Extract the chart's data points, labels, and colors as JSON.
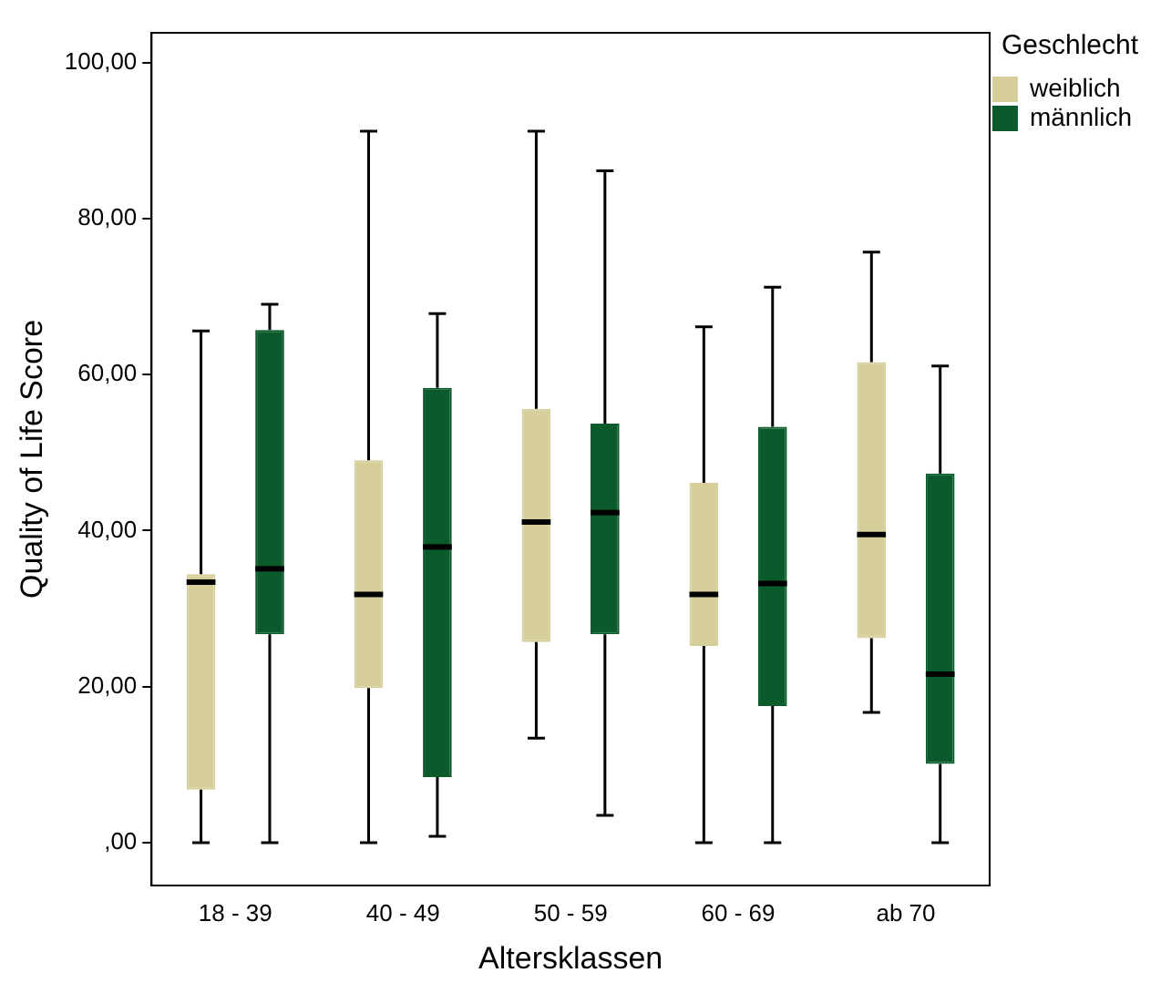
{
  "chart_data": {
    "type": "box",
    "xlabel": "Altersklassen",
    "ylabel": "Quality of Life Score",
    "legend_title": "Geschlecht",
    "legend": "right",
    "grid": false,
    "categories": [
      "18 - 39",
      "40 - 49",
      "50 - 59",
      "60 - 69",
      "ab 70"
    ],
    "ylim": [
      -5.5,
      103.8
    ],
    "yticks": [
      {
        "value": 0,
        "label": ",00"
      },
      {
        "value": 20,
        "label": "20,00"
      },
      {
        "value": 40,
        "label": "40,00"
      },
      {
        "value": 60,
        "label": "60,00"
      },
      {
        "value": 80,
        "label": "80,00"
      },
      {
        "value": 100,
        "label": "100,00"
      }
    ],
    "series": [
      {
        "name": "weiblich",
        "color": "#d6cf9b",
        "boxes": [
          {
            "low": 0,
            "q1": 6.8,
            "median": 33.4,
            "q3": 34.4,
            "high": 65.6
          },
          {
            "low": 0,
            "q1": 19.8,
            "median": 31.8,
            "q3": 49,
            "high": 91.2
          },
          {
            "low": 13.4,
            "q1": 25.7,
            "median": 41.1,
            "q3": 55.6,
            "high": 91.2
          },
          {
            "low": 0,
            "q1": 25.2,
            "median": 31.8,
            "q3": 46.1,
            "high": 66.1
          },
          {
            "low": 16.7,
            "q1": 26.2,
            "median": 39.5,
            "q3": 61.6,
            "high": 75.7
          }
        ]
      },
      {
        "name": "männlich",
        "color": "#0b5a2c",
        "boxes": [
          {
            "low": 0,
            "q1": 26.7,
            "median": 35.1,
            "q3": 65.7,
            "high": 69
          },
          {
            "low": 0.8,
            "q1": 8.4,
            "median": 37.9,
            "q3": 58.3,
            "high": 67.8
          },
          {
            "low": 3.5,
            "q1": 26.7,
            "median": 42.3,
            "q3": 53.7,
            "high": 86.1
          },
          {
            "low": 0,
            "q1": 17.5,
            "median": 33.2,
            "q3": 53.3,
            "high": 71.2
          },
          {
            "low": 0,
            "q1": 10.1,
            "median": 21.6,
            "q3": 47.3,
            "high": 61.1
          }
        ]
      }
    ]
  }
}
